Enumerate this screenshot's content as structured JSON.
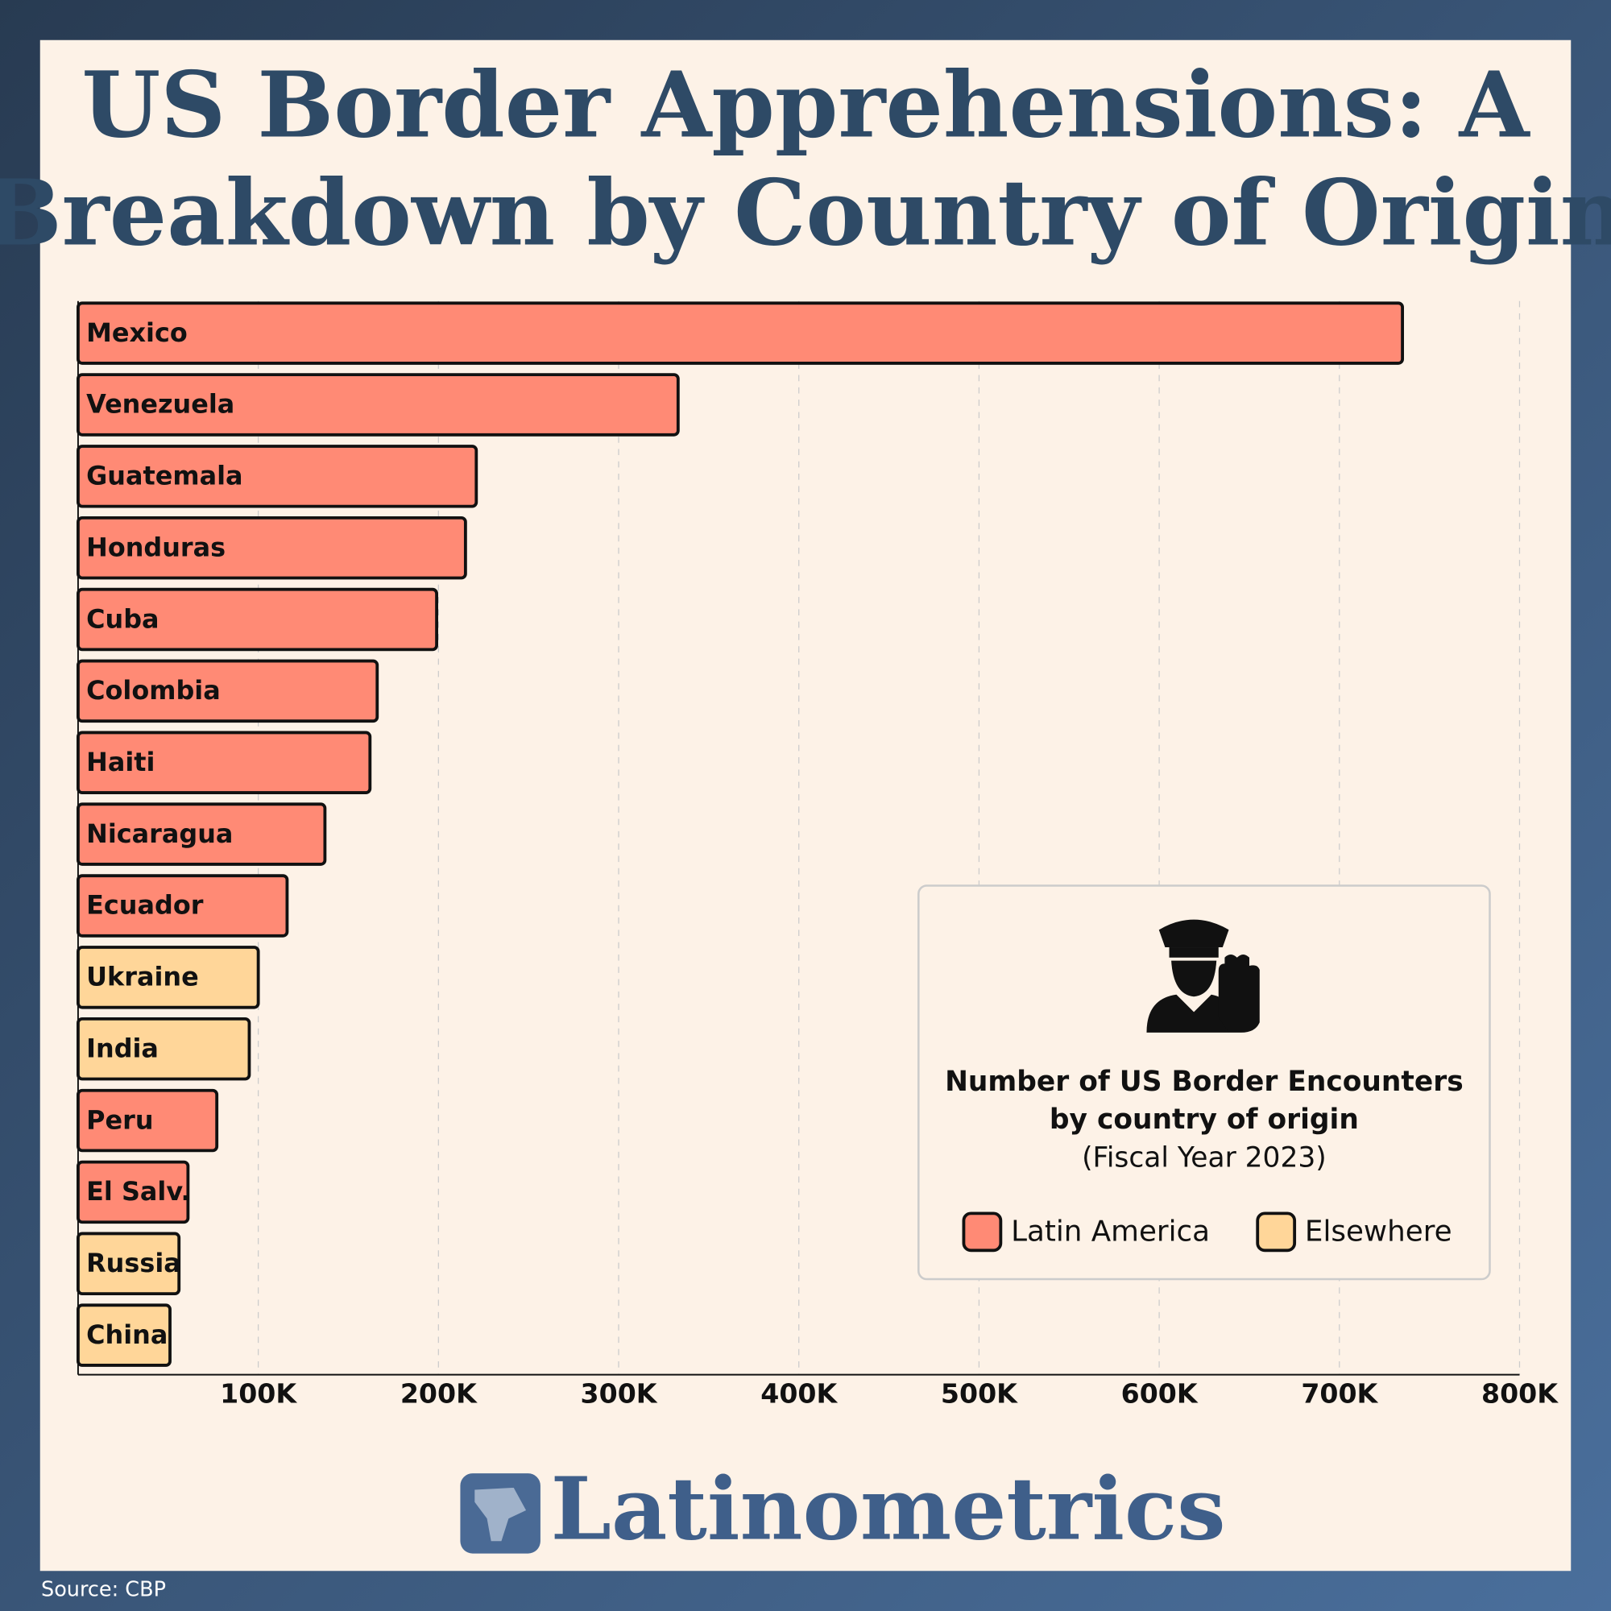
{
  "chart_data": {
    "type": "bar",
    "orientation": "horizontal",
    "title": [
      "US Border Apprehensions: A",
      "Breakdown by Country of Origin"
    ],
    "categories": [
      "Mexico",
      "Venezuela",
      "Guatemala",
      "Honduras",
      "Cuba",
      "Colombia",
      "Haiti",
      "Nicaragua",
      "Ecuador",
      "Ukraine",
      "India",
      "Peru",
      "El Salv.",
      "Russia",
      "China"
    ],
    "values": [
      735000,
      333000,
      221000,
      215000,
      199000,
      166000,
      162000,
      137000,
      116000,
      100000,
      95000,
      77000,
      61000,
      56000,
      51000
    ],
    "colors": [
      "#ff8a75",
      "#ff8a75",
      "#ff8a75",
      "#ff8a75",
      "#ff8a75",
      "#ff8a75",
      "#ff8a75",
      "#ff8a75",
      "#ff8a75",
      "#ffd699",
      "#ffd699",
      "#ff8a75",
      "#ff8a75",
      "#ffd699",
      "#ffd699"
    ],
    "xlim": [
      0,
      800000
    ],
    "xticks": [
      {
        "value": 100000,
        "label": "100K"
      },
      {
        "value": 200000,
        "label": "200K"
      },
      {
        "value": 300000,
        "label": "300K"
      },
      {
        "value": 400000,
        "label": "400K"
      },
      {
        "value": 500000,
        "label": "500K"
      },
      {
        "value": 600000,
        "label": "600K"
      },
      {
        "value": 700000,
        "label": "700K"
      },
      {
        "value": 800000,
        "label": "800K"
      }
    ],
    "grid": true,
    "legend_title": [
      "Number of US Border Encounters",
      "by country of origin",
      "(Fiscal Year 2023)"
    ],
    "legend": [
      {
        "name": "Latin America",
        "color": "#ff8a75"
      },
      {
        "name": "Elsewhere",
        "color": "#ffd699"
      }
    ],
    "brand": "Latinometrics",
    "source": "Source: CBP"
  }
}
